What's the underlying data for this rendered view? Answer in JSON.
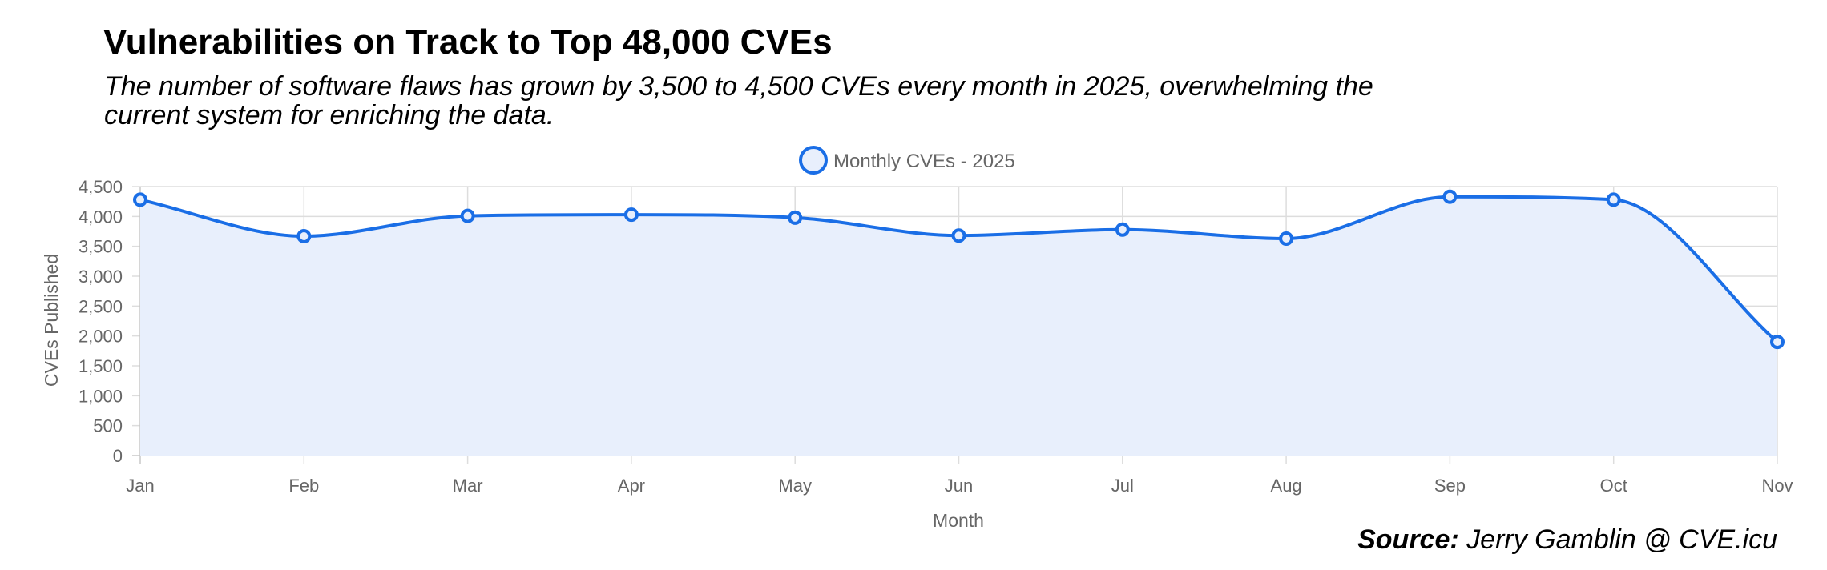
{
  "header": {
    "title": "Vulnerabilities on Track to Top 48,000 CVEs",
    "subtitle": "The number of software flaws has grown by 3,500 to 4,500 CVEs every month in 2025, overwhelming the current system for enriching the data."
  },
  "footer": {
    "source_label": "Source:",
    "source_text": "Jerry Gamblin @ CVE.icu"
  },
  "colors": {
    "line": "#1a6ee6",
    "fill": "#e8effc",
    "grid": "#dddddd",
    "text": "#666666"
  },
  "chart_data": {
    "type": "area",
    "x": [
      "Jan",
      "Feb",
      "Mar",
      "Apr",
      "May",
      "Jun",
      "Jul",
      "Aug",
      "Sep",
      "Oct",
      "Nov"
    ],
    "series": [
      {
        "name": "Monthly CVEs - 2025",
        "values": [
          4280,
          3670,
          4010,
          4030,
          3980,
          3680,
          3780,
          3630,
          4330,
          4280,
          1900
        ]
      }
    ],
    "xlabel": "Month",
    "ylabel": "CVEs Published",
    "ylim": [
      0,
      4500
    ],
    "yticks": [
      "0",
      "500",
      "1,000",
      "1,500",
      "2,000",
      "2,500",
      "3,000",
      "3,500",
      "4,000",
      "4,500"
    ],
    "grid": true,
    "legend": "top-center"
  }
}
